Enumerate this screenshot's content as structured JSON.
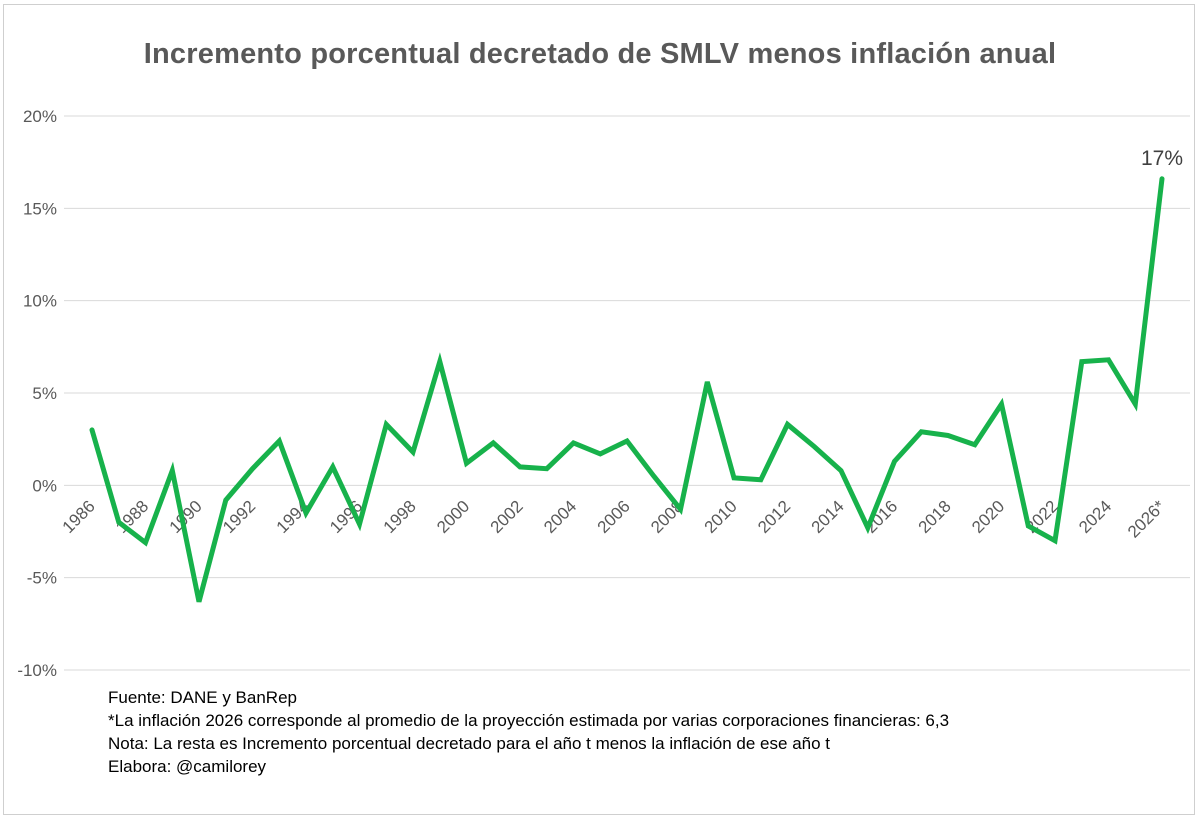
{
  "chart_data": {
    "type": "line",
    "title": "Incremento porcentual decretado de SMLV menos inflación anual",
    "xlabel": "",
    "ylabel": "",
    "x": [
      "1986",
      "1987",
      "1988",
      "1989",
      "1990",
      "1991",
      "1992",
      "1993",
      "1994",
      "1995",
      "1996",
      "1997",
      "1998",
      "1999",
      "2000",
      "2001",
      "2002",
      "2003",
      "2004",
      "2005",
      "2006",
      "2007",
      "2008",
      "2009",
      "2010",
      "2011",
      "2012",
      "2013",
      "2014",
      "2015",
      "2016",
      "2017",
      "2018",
      "2019",
      "2020",
      "2021",
      "2022",
      "2023",
      "2024",
      "2025",
      "2026*"
    ],
    "tick_labels": [
      "1986",
      "1988",
      "1990",
      "1992",
      "1994",
      "1996",
      "1998",
      "2000",
      "2002",
      "2004",
      "2006",
      "2008",
      "2010",
      "2012",
      "2014",
      "2016",
      "2018",
      "2020",
      "2022",
      "2024",
      "2026*"
    ],
    "series": [
      {
        "name": "",
        "color": "#17b24b",
        "values": [
          3.0,
          -2.0,
          -3.1,
          0.8,
          -6.3,
          -0.8,
          0.9,
          2.4,
          -1.5,
          1.0,
          -2.1,
          3.3,
          1.8,
          6.7,
          1.2,
          2.3,
          1.0,
          0.9,
          2.3,
          1.7,
          2.4,
          0.5,
          -1.3,
          5.6,
          0.4,
          0.3,
          3.3,
          2.1,
          0.8,
          -2.3,
          1.3,
          2.9,
          2.7,
          2.2,
          4.4,
          -2.2,
          -3.0,
          6.7,
          6.8,
          4.4,
          16.6
        ]
      }
    ],
    "ylim": [
      -10,
      20
    ],
    "yticks": [
      -10,
      -5,
      0,
      5,
      10,
      15,
      20
    ],
    "ytick_labels": [
      "-10%",
      "-5%",
      "0%",
      "5%",
      "10%",
      "15%",
      "20%"
    ],
    "grid": true,
    "legend": "none",
    "annotations": [
      {
        "x": "2026*",
        "text": "17%"
      }
    ]
  },
  "notes": {
    "source": "Fuente: DANE y BanRep",
    "footnote": "*La inflación 2026 corresponde al promedio de la proyección estimada por varias corporaciones financieras: 6,3",
    "note": "Nota: La resta es Incremento porcentual decretado para el año t menos la inflación de ese año t",
    "author": "Elabora: @camilorey"
  },
  "colors": {
    "line": "#17b24b",
    "grid": "#d9d9d9",
    "text": "#595959"
  }
}
